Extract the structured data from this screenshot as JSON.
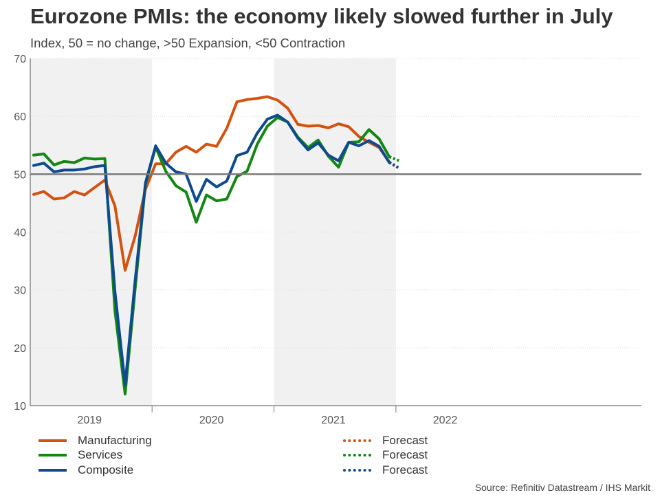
{
  "title": "Eurozone PMIs: the economy likely slowed further in July",
  "subtitle": "Index, 50 = no change, >50 Expansion, <50 Contraction",
  "source": "Source: Refinitiv Datastream / IHS Markit",
  "legend": {
    "left": [
      {
        "label": "Manufacturing",
        "color": "#d4520f",
        "style": "solid"
      },
      {
        "label": "Services",
        "color": "#128712",
        "style": "solid"
      },
      {
        "label": "Composite",
        "color": "#0d4a8e",
        "style": "solid"
      }
    ],
    "right": [
      {
        "label": "Forecast",
        "color": "#d4520f",
        "style": "dotted"
      },
      {
        "label": "Forecast",
        "color": "#128712",
        "style": "dotted"
      },
      {
        "label": "Forecast",
        "color": "#0d4a8e",
        "style": "dotted"
      }
    ]
  },
  "chart_data": {
    "type": "line",
    "title": "Eurozone PMIs: the economy likely slowed further in July",
    "ylabel": "",
    "ylim": [
      10,
      70
    ],
    "yticks": [
      10,
      20,
      30,
      40,
      50,
      60,
      70
    ],
    "reference_line": 50,
    "x_start": "2019-01",
    "x_range_months": [
      0,
      43
    ],
    "year_labels": [
      {
        "label": "2019",
        "month_index": 5.5
      },
      {
        "label": "2020",
        "month_index": 17.5
      },
      {
        "label": "2021",
        "month_index": 29.5
      },
      {
        "label": "2022",
        "month_index": 40.5
      }
    ],
    "year_boundaries": [
      12,
      24,
      36
    ],
    "shaded_years": [
      [
        0,
        12
      ],
      [
        24,
        36
      ]
    ],
    "series": [
      {
        "name": "Manufacturing",
        "color": "#d4520f",
        "values": [
          46.5,
          47.0,
          45.7,
          45.9,
          47.0,
          46.4,
          47.7,
          49.0,
          44.5,
          33.4,
          39.4,
          47.4,
          51.8,
          51.8,
          53.8,
          54.8,
          53.8,
          55.2,
          54.8,
          57.9,
          62.5,
          62.9,
          63.1,
          63.4,
          62.8,
          61.4,
          58.6,
          58.3,
          58.4,
          58.0,
          58.7,
          58.2,
          56.5,
          55.5,
          54.6,
          52.1
        ],
        "forecast": [
          52.1,
          51.0
        ]
      },
      {
        "name": "Services",
        "color": "#128712",
        "values": [
          53.3,
          53.5,
          51.6,
          52.2,
          52.0,
          52.8,
          52.6,
          52.7,
          26.4,
          12.0,
          30.5,
          48.3,
          54.7,
          50.5,
          48.0,
          46.9,
          41.7,
          46.4,
          45.4,
          45.7,
          49.6,
          50.5,
          55.2,
          58.3,
          59.8,
          59.0,
          56.4,
          54.6,
          55.9,
          53.1,
          51.2,
          55.5,
          55.6,
          57.7,
          56.1,
          53.0
        ],
        "forecast": [
          53.0,
          52.3
        ]
      },
      {
        "name": "Composite",
        "color": "#0d4a8e",
        "values": [
          51.5,
          51.9,
          50.4,
          50.7,
          50.7,
          50.9,
          51.3,
          51.5,
          29.7,
          13.6,
          31.9,
          48.5,
          54.9,
          51.9,
          50.4,
          50.0,
          45.3,
          49.1,
          47.8,
          48.8,
          53.2,
          53.8,
          57.1,
          59.5,
          60.2,
          59.0,
          56.2,
          54.2,
          55.4,
          53.3,
          52.3,
          55.5,
          54.9,
          55.8,
          54.8,
          52.0
        ],
        "forecast": [
          52.0,
          51.0
        ]
      }
    ]
  }
}
